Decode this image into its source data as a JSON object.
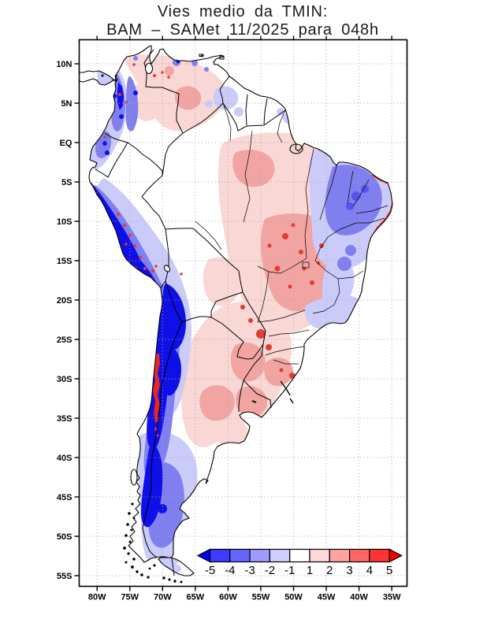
{
  "title": {
    "line1": "Vies medio da TMIN:",
    "line2": "BAM – SAMet 11/2025  para 048h"
  },
  "chart_data": {
    "type": "heatmap",
    "title": "Vies medio da TMIN: BAM – SAMet 11/2025 para 048h",
    "description_visible": "Gridded mean bias of minimum temperature (BAM model minus SAMet) over South America, 48h forecast; blue = negative bias, red = positive bias",
    "x_axis": {
      "tick_labels": [
        "80W",
        "75W",
        "70W",
        "65W",
        "60W",
        "55W",
        "50W",
        "45W",
        "40W",
        "35W"
      ]
    },
    "y_axis": {
      "tick_labels": [
        "10N",
        "5N",
        "EQ",
        "5S",
        "10S",
        "15S",
        "20S",
        "25S",
        "30S",
        "35S",
        "40S",
        "45S",
        "50S",
        "55S"
      ]
    },
    "grid": "dotted gray every 5 degrees",
    "legend_position": "bottom, horizontal color bar with out-of-range arrows",
    "colorbar": {
      "boundary_labels": [
        "-5",
        "-4",
        "-3",
        "-2",
        "-1",
        "1",
        "2",
        "3",
        "4",
        "5"
      ],
      "cell_colors": [
        "#3c3cff",
        "#6666ff",
        "#9c9cff",
        "#cfcfff",
        "#ffffff",
        "#ffd8d8",
        "#ffa2a2",
        "#ff6666",
        "#ff3333"
      ],
      "arrow_left_color": "#0000ff",
      "arrow_right_color": "#f80000"
    },
    "approx_regions": [
      {
        "area": "Peru coast and Andes, Chile-Bolivia Altiplano, Chilean Andes",
        "bias": "-3 to <-5"
      },
      {
        "area": "Northeast Brazil core",
        "bias": "-2 to -4"
      },
      {
        "area": "Patagonia / western Argentina",
        "bias": "-1 to -3"
      },
      {
        "area": "Central Brazil (Mato Grosso, Goias, Tocantins)",
        "bias": "+1 to +3 with local >+4 spots"
      },
      {
        "area": "Venezuela and Llanos",
        "bias": "0 to +2"
      },
      {
        "area": "Eastern Argentina, Uruguay, S Brazil",
        "bias": "+1 to +2 with red spots"
      },
      {
        "area": "Central Chile coastal strip ~29S-35S",
        "bias": ">+4"
      },
      {
        "area": "Western Amazon",
        "bias": "near 0"
      }
    ]
  }
}
